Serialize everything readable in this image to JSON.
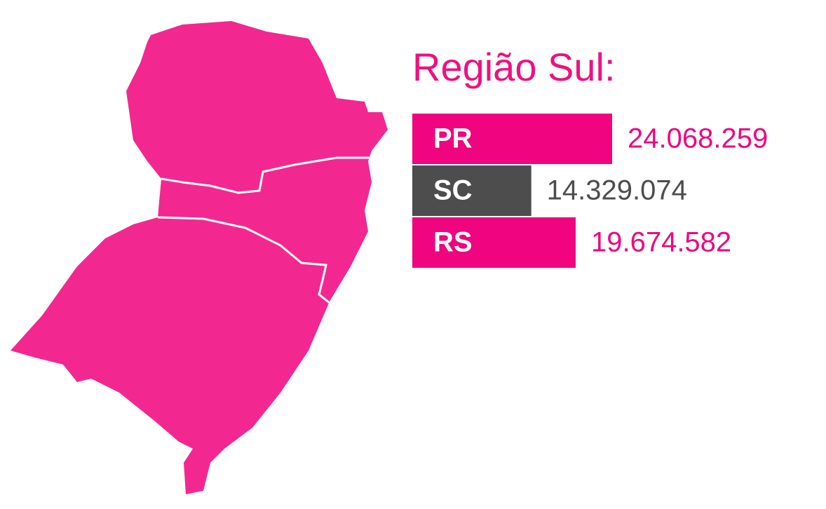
{
  "chart_data": {
    "type": "bar",
    "title": "Região Sul:",
    "categories": [
      "PR",
      "SC",
      "RS"
    ],
    "values": [
      24068259,
      14329074,
      19674582
    ],
    "value_labels": [
      "24.068.259",
      "14.329.074",
      "19.674.582"
    ],
    "colors": [
      "#f0047f",
      "#4d4d4d",
      "#f0047f"
    ],
    "orientation": "horizontal"
  }
}
